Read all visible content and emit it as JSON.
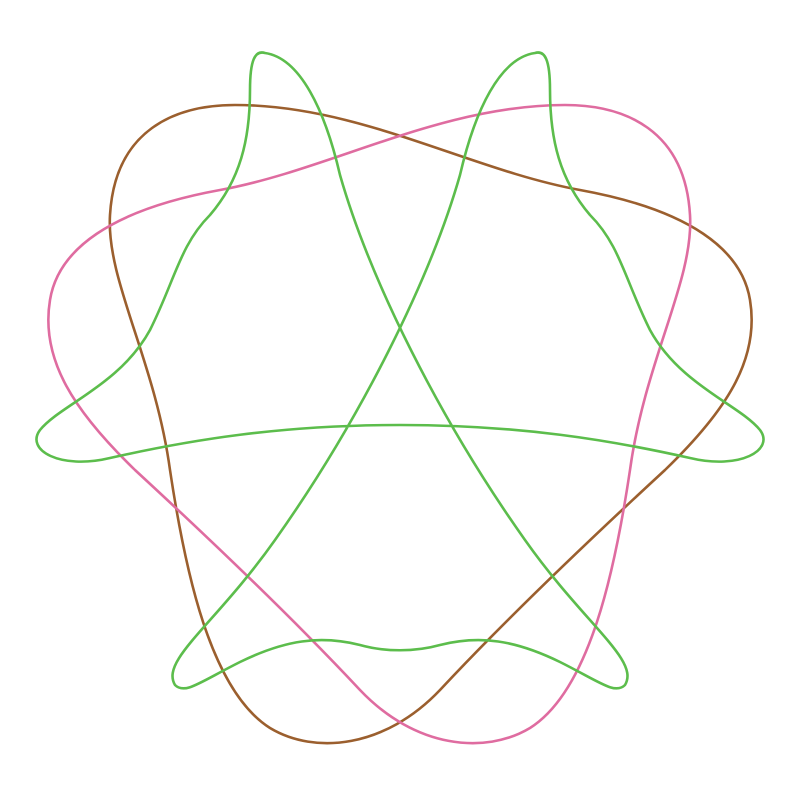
{
  "figure": {
    "background": "#ffffff",
    "curves": [
      {
        "id": "curve-brown",
        "color": "#9b5f2e",
        "shape": "closed rounded three-lobed loop"
      },
      {
        "id": "curve-pink",
        "color": "#df6ca0",
        "shape": "closed rounded three-lobed loop (mirror of brown)"
      },
      {
        "id": "curve-green",
        "color": "#5cbd4c",
        "shape": "closed five-pointed interlaced star loop"
      }
    ]
  }
}
